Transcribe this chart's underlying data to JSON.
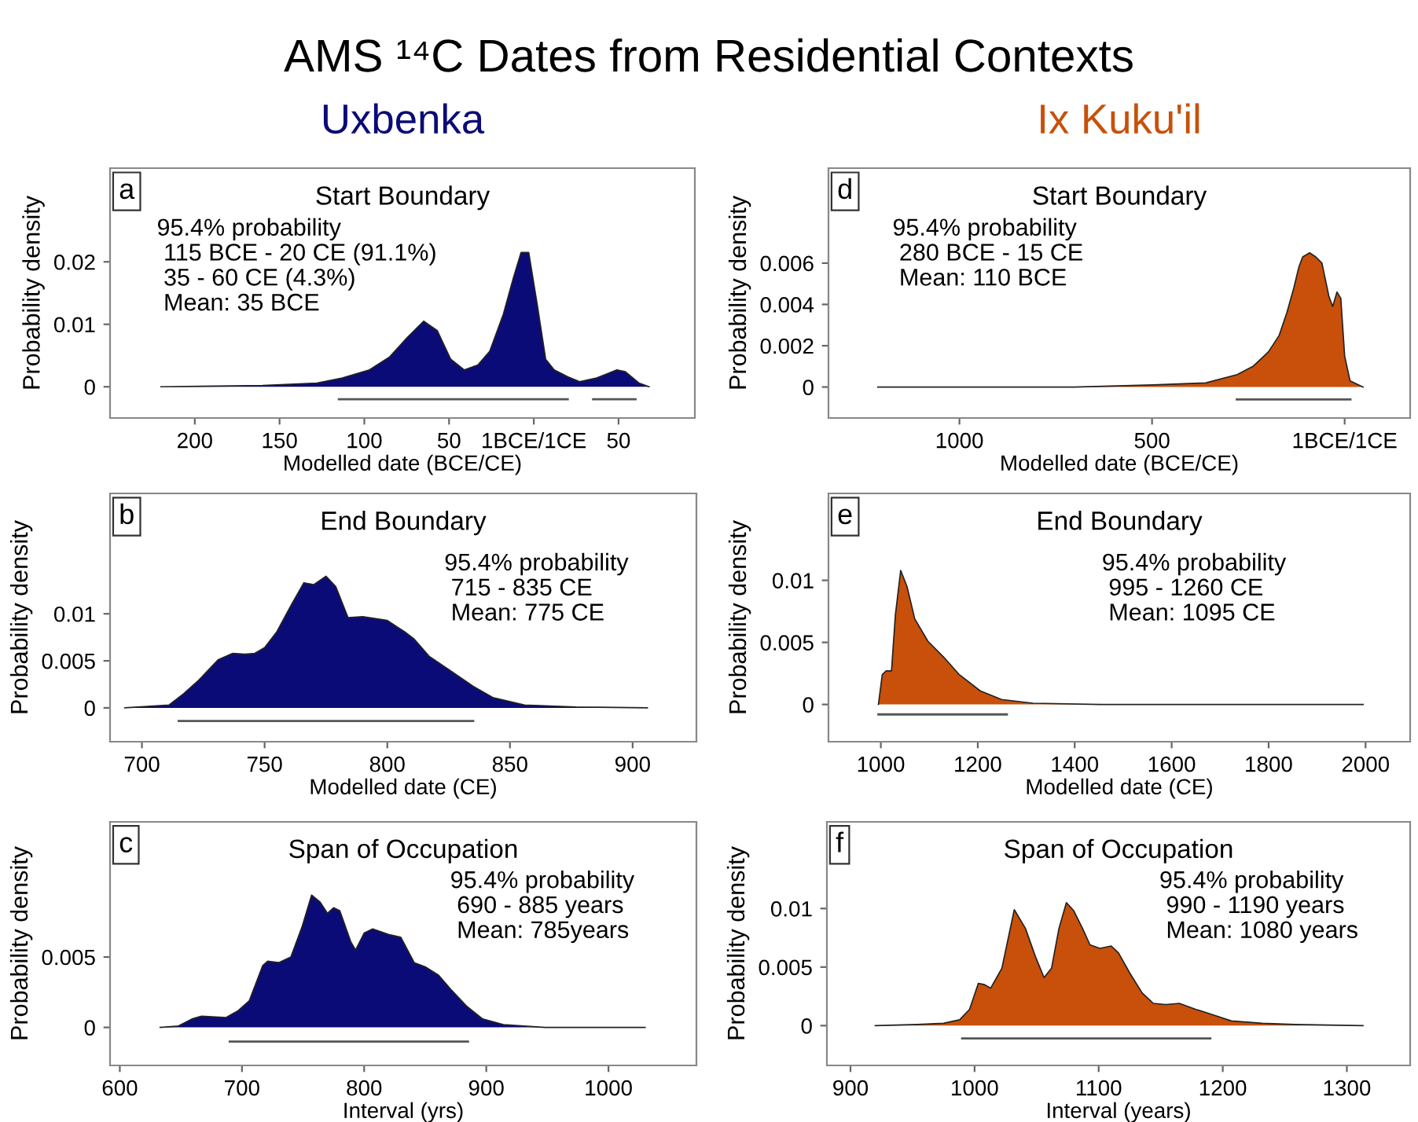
{
  "chart_data": [
    {
      "type": "area",
      "title": "Uxbenka",
      "subtitle": "Start Boundary",
      "ylabel": "Probability density",
      "xlabel": "Modelled date (BCE/CE)",
      "annotations": [
        "a",
        "95.4% probability\n 115 BCE - 20 CE (91.1%)\n 35 - 60 CE (4.3%)\n Mean: 35 BCE",
        "AMS ¹⁴C Dates from Residential Contexts"
      ],
      "xlim": [
        -250,
        95
      ],
      "ylim": [
        -0.005,
        0.035
      ],
      "xticks": [
        {
          "value": -200,
          "label": "200"
        },
        {
          "value": -150,
          "label": "150"
        },
        {
          "value": -100,
          "label": "100"
        },
        {
          "value": -50,
          "label": "50"
        },
        {
          "value": 0,
          "label": "1BCE/1CE"
        },
        {
          "value": 50,
          "label": "50"
        }
      ],
      "yticks": [
        0,
        0.01,
        0.02
      ],
      "grid": false,
      "legend": false,
      "series": [
        {
          "color": "#0b0b78",
          "x": [
            -220,
            -160,
            -128,
            -113,
            -97,
            -85,
            -75,
            -65,
            -57,
            -49,
            -41,
            -33,
            -26,
            -18,
            -12,
            -7.5,
            -3,
            2,
            7,
            12,
            20,
            27,
            37,
            49,
            54,
            62,
            68
          ],
          "values": [
            0,
            0.0002,
            0.0006,
            0.0014,
            0.0027,
            0.0048,
            0.0078,
            0.0105,
            0.009,
            0.0044,
            0.0027,
            0.0035,
            0.0057,
            0.0116,
            0.0175,
            0.0215,
            0.0215,
            0.0132,
            0.0044,
            0.0027,
            0.0016,
            0.0008,
            0.0014,
            0.0027,
            0.0024,
            0.0006,
            0
          ]
        },
        {
          "type": "line",
          "color": "#555555",
          "x": [
            -115,
            20
          ],
          "values": [
            -0.002,
            -0.002
          ]
        },
        {
          "type": "line",
          "color": "#555555",
          "x": [
            35,
            60
          ],
          "values": [
            -0.002,
            -0.002
          ]
        }
      ]
    },
    {
      "type": "area",
      "title": "Ix Kuku'il",
      "subtitle": "Start Boundary",
      "ylabel": "Probability density",
      "xlabel": "Modelled date (BCE/CE)",
      "annotations": [
        "d",
        "95.4% probability\n 280 BCE - 15 CE\n Mean: 110 BCE"
      ],
      "xlim": [
        -1340,
        170
      ],
      "ylim": [
        -0.0015,
        0.0106
      ],
      "xticks": [
        {
          "value": -1000,
          "label": "1000"
        },
        {
          "value": -500,
          "label": "500"
        },
        {
          "value": 0,
          "label": "1BCE/1CE"
        }
      ],
      "yticks": [
        0,
        0.002,
        0.004,
        0.006
      ],
      "grid": false,
      "legend": false,
      "series": [
        {
          "color": "#c8500a",
          "x": [
            -1212,
            -702,
            -497,
            -361,
            -279,
            -238,
            -198,
            -170,
            -150,
            -132,
            -119,
            -109,
            -91,
            -75,
            -59,
            -41,
            -31,
            -20,
            -10,
            0,
            14,
            48
          ],
          "values": [
            0,
            0,
            0.0001,
            0.0002,
            0.0006,
            0.001,
            0.0017,
            0.0025,
            0.0036,
            0.0048,
            0.0058,
            0.0063,
            0.0065,
            0.0063,
            0.006,
            0.0044,
            0.0039,
            0.0046,
            0.0043,
            0.0015,
            0.0003,
            0
          ]
        },
        {
          "type": "line",
          "color": "#555555",
          "x": [
            -280,
            15
          ],
          "values": [
            -0.0006,
            -0.0006
          ]
        }
      ]
    },
    {
      "type": "area",
      "subtitle": "End Boundary",
      "ylabel": "Probability density",
      "xlabel": "Modelled date (CE)",
      "annotations": [
        "b",
        "95.4% probability\n 715 - 835 CE\n Mean: 775 CE"
      ],
      "xlim": [
        687,
        926
      ],
      "ylim": [
        -0.0036,
        0.0228
      ],
      "xticks": [
        700,
        750,
        800,
        850,
        900
      ],
      "yticks": [
        0,
        0.005,
        0.01
      ],
      "grid": false,
      "legend": false,
      "series": [
        {
          "color": "#0b0b78",
          "x": [
            693,
            711,
            717,
            723,
            731,
            737,
            742,
            746,
            750,
            755,
            761,
            766,
            770,
            775,
            779,
            784,
            790,
            800,
            807,
            811,
            817,
            826,
            835,
            843,
            856,
            877,
            906
          ],
          "values": [
            0,
            0.0003,
            0.0015,
            0.0029,
            0.0051,
            0.0058,
            0.0057,
            0.0058,
            0.0064,
            0.0081,
            0.011,
            0.0133,
            0.0131,
            0.014,
            0.0129,
            0.0096,
            0.0097,
            0.0093,
            0.0081,
            0.0073,
            0.0055,
            0.0039,
            0.0023,
            0.0011,
            0.0003,
            0.0001,
            0
          ]
        },
        {
          "type": "line",
          "color": "#555555",
          "x": [
            715,
            835
          ],
          "values": [
            -0.0014,
            -0.0014
          ]
        }
      ]
    },
    {
      "type": "area",
      "subtitle": "End Boundary",
      "ylabel": "Probability density",
      "xlabel": "Modelled date (CE)",
      "annotations": [
        "e",
        "95.4% probability\n 995 - 1260 CE\n Mean: 1095 CE"
      ],
      "xlim": [
        892,
        2092
      ],
      "ylim": [
        -0.003,
        0.017
      ],
      "xticks": [
        1000,
        1200,
        1400,
        1600,
        1800,
        2000
      ],
      "yticks": [
        0,
        0.005,
        0.01
      ],
      "grid": false,
      "legend": false,
      "series": [
        {
          "color": "#c8500a",
          "x": [
            995,
            1003,
            1011,
            1022,
            1030,
            1041,
            1054,
            1070,
            1097,
            1130,
            1162,
            1205,
            1249,
            1314,
            1454,
            1995
          ],
          "values": [
            0,
            0.0024,
            0.0027,
            0.0027,
            0.0072,
            0.0108,
            0.0095,
            0.0069,
            0.0051,
            0.0038,
            0.0024,
            0.0011,
            0.0004,
            0.0001,
            0,
            0
          ]
        },
        {
          "type": "line",
          "color": "#555555",
          "x": [
            995,
            1260
          ],
          "values": [
            -0.0008,
            -0.0008
          ]
        }
      ]
    },
    {
      "type": "area",
      "subtitle": "Span of Occupation",
      "ylabel": "Probability density",
      "xlabel": "Interval (yrs)",
      "annotations": [
        "c",
        "95.4% probability\n 690 - 885 years\n Mean: 785years"
      ],
      "xlim": [
        592,
        1072
      ],
      "ylim": [
        -0.0027,
        0.0146
      ],
      "xticks": [
        600,
        700,
        800,
        900,
        1000
      ],
      "yticks": [
        0,
        0.005
      ],
      "grid": false,
      "legend": false,
      "series": [
        {
          "color": "#0b0b78",
          "x": [
            633,
            648,
            659,
            667,
            687,
            697,
            706,
            717,
            721,
            730,
            740,
            749,
            757,
            764,
            770,
            775,
            780,
            789,
            793,
            800,
            807,
            820,
            830,
            841,
            850,
            861,
            871,
            884,
            897,
            914,
            948,
            1030
          ],
          "values": [
            0,
            0.0001,
            0.0006,
            0.0008,
            0.0007,
            0.0012,
            0.0019,
            0.0044,
            0.0047,
            0.0046,
            0.005,
            0.0071,
            0.0094,
            0.0089,
            0.0081,
            0.0085,
            0.0083,
            0.0061,
            0.0055,
            0.0067,
            0.007,
            0.0066,
            0.0064,
            0.0046,
            0.0043,
            0.0037,
            0.0027,
            0.0015,
            0.0006,
            0.0002,
            0,
            0
          ]
        },
        {
          "type": "line",
          "color": "#555555",
          "x": [
            690,
            885
          ],
          "values": [
            -0.001,
            -0.001
          ]
        }
      ]
    },
    {
      "type": "area",
      "subtitle": "Span of Occupation",
      "ylabel": "Probability density",
      "xlabel": "Interval (years)",
      "annotations": [
        "f",
        "95.4% probability\n 990 - 1190 years\n Mean: 1080 years"
      ],
      "xlim": [
        881,
        1351
      ],
      "ylim": [
        -0.0034,
        0.0174
      ],
      "xticks": [
        900,
        1000,
        1100,
        1200,
        1300
      ],
      "yticks": [
        0,
        0.005,
        0.01
      ],
      "grid": false,
      "legend": false,
      "series": [
        {
          "color": "#c8500a",
          "x": [
            920,
            954,
            975,
            988,
            996,
            1003,
            1008,
            1013,
            1022,
            1032,
            1041,
            1049,
            1056,
            1062,
            1068,
            1074,
            1080,
            1087,
            1093,
            1101,
            1110,
            1116,
            1125,
            1135,
            1144,
            1154,
            1165,
            1178,
            1190,
            1207,
            1232,
            1258,
            1313
          ],
          "values": [
            0,
            0.0001,
            0.0002,
            0.0005,
            0.0014,
            0.0036,
            0.0035,
            0.0032,
            0.0049,
            0.0099,
            0.0083,
            0.0059,
            0.0041,
            0.0049,
            0.0083,
            0.0105,
            0.0098,
            0.0083,
            0.0069,
            0.0066,
            0.0068,
            0.0062,
            0.0045,
            0.0028,
            0.0019,
            0.0018,
            0.0019,
            0.0014,
            0.001,
            0.0004,
            0.0002,
            0.0001,
            0
          ]
        },
        {
          "type": "line",
          "color": "#555555",
          "x": [
            990,
            1190
          ],
          "values": [
            -0.0011,
            -0.0011
          ]
        }
      ]
    }
  ]
}
